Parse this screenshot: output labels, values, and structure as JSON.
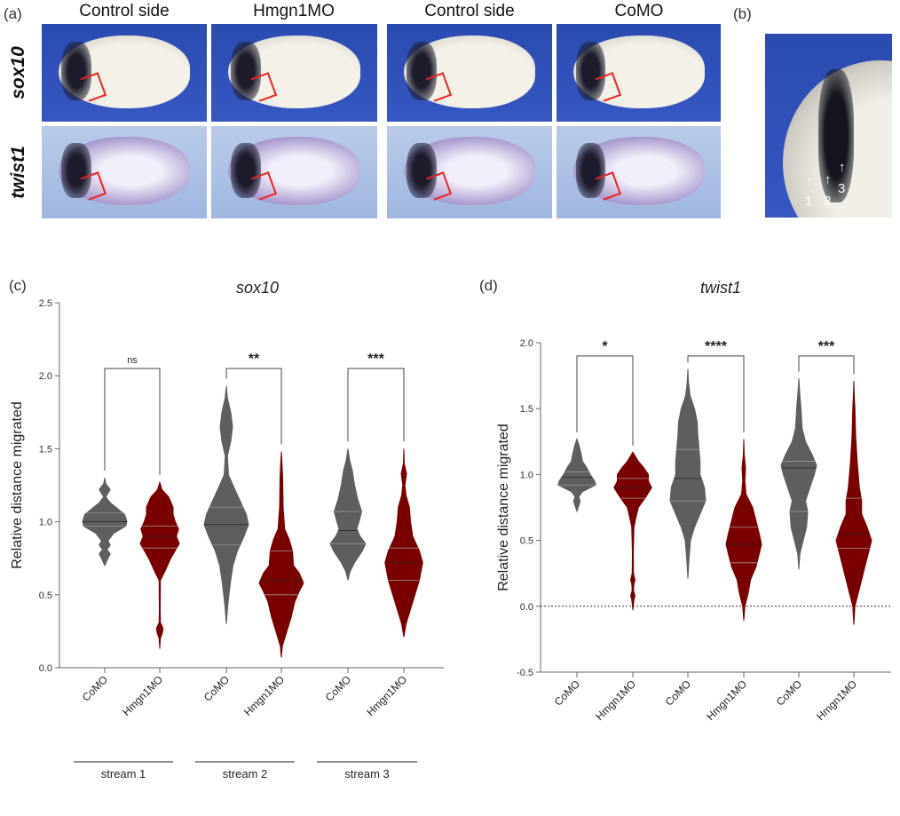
{
  "panel_a": {
    "label": "(a)",
    "columns": [
      "Control side",
      "Hmgn1MO",
      "Control side",
      "CoMO"
    ],
    "rows": [
      "sox10",
      "twist1"
    ]
  },
  "panel_b": {
    "label": "(b)",
    "arrows": [
      "1",
      "2",
      "3"
    ]
  },
  "colors": {
    "como": "#5e5e5e",
    "hmgn1mo": "#7a0000",
    "bracket_mark": "#e02020",
    "background_dark": "#3050bb",
    "background_light": "#a9bee4"
  },
  "chart_data": [
    {
      "panel_label": "(c)",
      "type": "violin",
      "title": "sox10",
      "ylabel": "Relative distance migrated",
      "ylim": [
        0,
        2.5
      ],
      "yticks": [
        "0.0",
        "0.5",
        "1.0",
        "1.5",
        "2.0",
        "2.5"
      ],
      "categories": [
        "CoMO",
        "Hmgn1MO",
        "CoMO",
        "Hmgn1MO",
        "CoMO",
        "Hmgn1MO"
      ],
      "groups": [
        "stream 1",
        "stream 2",
        "stream 3"
      ],
      "zero_line": false,
      "significance": [
        {
          "pair": [
            0,
            1
          ],
          "label": "ns",
          "y": 2.05
        },
        {
          "pair": [
            2,
            3
          ],
          "label": "**",
          "y": 2.05
        },
        {
          "pair": [
            4,
            5
          ],
          "label": "***",
          "y": 2.05
        }
      ],
      "violins": [
        {
          "group": "CoMO",
          "median": 1.0,
          "q1": 0.97,
          "q3": 1.06,
          "density": [
            [
              0.7,
              0
            ],
            [
              0.75,
              0.15
            ],
            [
              0.78,
              0.25
            ],
            [
              0.81,
              0.1
            ],
            [
              0.84,
              0.25
            ],
            [
              0.87,
              0.15
            ],
            [
              0.92,
              0.4
            ],
            [
              0.97,
              0.95
            ],
            [
              1.0,
              1.0
            ],
            [
              1.05,
              0.9
            ],
            [
              1.1,
              0.5
            ],
            [
              1.13,
              0.25
            ],
            [
              1.17,
              0.05
            ],
            [
              1.22,
              0.25
            ],
            [
              1.26,
              0.05
            ],
            [
              1.3,
              0
            ]
          ]
        },
        {
          "group": "Hmgn1MO",
          "median": 0.9,
          "q1": 0.82,
          "q3": 0.97,
          "density": [
            [
              0.13,
              0
            ],
            [
              0.2,
              0.03
            ],
            [
              0.24,
              0.12
            ],
            [
              0.27,
              0.15
            ],
            [
              0.31,
              0.03
            ],
            [
              0.4,
              0.02
            ],
            [
              0.6,
              0.03
            ],
            [
              0.65,
              0.2
            ],
            [
              0.75,
              0.5
            ],
            [
              0.85,
              0.88
            ],
            [
              0.9,
              0.75
            ],
            [
              0.95,
              0.85
            ],
            [
              1.0,
              0.7
            ],
            [
              1.05,
              0.6
            ],
            [
              1.1,
              0.6
            ],
            [
              1.17,
              0.4
            ],
            [
              1.22,
              0.1
            ],
            [
              1.27,
              0
            ]
          ]
        },
        {
          "group": "CoMO",
          "median": 0.98,
          "q1": 0.84,
          "q3": 1.1,
          "density": [
            [
              0.3,
              0
            ],
            [
              0.4,
              0.05
            ],
            [
              0.5,
              0.12
            ],
            [
              0.6,
              0.2
            ],
            [
              0.7,
              0.3
            ],
            [
              0.8,
              0.5
            ],
            [
              0.9,
              0.8
            ],
            [
              0.98,
              1.0
            ],
            [
              1.05,
              0.9
            ],
            [
              1.15,
              0.6
            ],
            [
              1.25,
              0.3
            ],
            [
              1.32,
              0.1
            ],
            [
              1.45,
              0.05
            ],
            [
              1.55,
              0.2
            ],
            [
              1.65,
              0.28
            ],
            [
              1.75,
              0.2
            ],
            [
              1.85,
              0.05
            ],
            [
              1.93,
              0
            ]
          ]
        },
        {
          "group": "Hmgn1MO",
          "median": 0.6,
          "q1": 0.5,
          "q3": 0.8,
          "density": [
            [
              0.07,
              0
            ],
            [
              0.15,
              0.05
            ],
            [
              0.25,
              0.25
            ],
            [
              0.35,
              0.45
            ],
            [
              0.45,
              0.6
            ],
            [
              0.52,
              0.8
            ],
            [
              0.58,
              1.0
            ],
            [
              0.65,
              0.8
            ],
            [
              0.7,
              0.55
            ],
            [
              0.8,
              0.5
            ],
            [
              0.88,
              0.35
            ],
            [
              0.95,
              0.15
            ],
            [
              1.1,
              0.08
            ],
            [
              1.3,
              0.06
            ],
            [
              1.4,
              0.03
            ],
            [
              1.48,
              0
            ]
          ]
        },
        {
          "group": "CoMO",
          "median": 0.94,
          "q1": 0.85,
          "q3": 1.07,
          "density": [
            [
              0.6,
              0
            ],
            [
              0.66,
              0.1
            ],
            [
              0.72,
              0.3
            ],
            [
              0.8,
              0.65
            ],
            [
              0.85,
              0.8
            ],
            [
              0.9,
              0.55
            ],
            [
              0.95,
              0.4
            ],
            [
              1.0,
              0.5
            ],
            [
              1.07,
              0.62
            ],
            [
              1.15,
              0.45
            ],
            [
              1.25,
              0.3
            ],
            [
              1.35,
              0.2
            ],
            [
              1.42,
              0.08
            ],
            [
              1.5,
              0
            ]
          ]
        },
        {
          "group": "Hmgn1MO",
          "median": 0.72,
          "q1": 0.6,
          "q3": 0.82,
          "density": [
            [
              0.21,
              0
            ],
            [
              0.3,
              0.1
            ],
            [
              0.4,
              0.3
            ],
            [
              0.5,
              0.5
            ],
            [
              0.6,
              0.7
            ],
            [
              0.72,
              0.85
            ],
            [
              0.8,
              0.7
            ],
            [
              0.9,
              0.4
            ],
            [
              1.0,
              0.3
            ],
            [
              1.1,
              0.25
            ],
            [
              1.18,
              0.1
            ],
            [
              1.25,
              0.05
            ],
            [
              1.33,
              0.12
            ],
            [
              1.4,
              0.02
            ],
            [
              1.5,
              0
            ]
          ]
        }
      ]
    },
    {
      "panel_label": "(d)",
      "type": "violin",
      "title": "twist1",
      "ylabel": "Relative distance migrated",
      "ylim": [
        -0.5,
        2.0
      ],
      "yticks": [
        "-0.5",
        "0.0",
        "0.5",
        "1.0",
        "1.5",
        "2.0"
      ],
      "categories": [
        "CoMO",
        "Hmgn1MO",
        "CoMO",
        "Hmgn1MO",
        "CoMO",
        "Hmgn1MO"
      ],
      "groups": [],
      "zero_line": true,
      "significance": [
        {
          "pair": [
            0,
            1
          ],
          "label": "*",
          "y": 1.9
        },
        {
          "pair": [
            2,
            3
          ],
          "label": "****",
          "y": 1.9
        },
        {
          "pair": [
            4,
            5
          ],
          "label": "***",
          "y": 1.9
        }
      ],
      "violins": [
        {
          "group": "CoMO",
          "median": 0.98,
          "q1": 0.92,
          "q3": 1.02,
          "density": [
            [
              0.72,
              0
            ],
            [
              0.77,
              0.1
            ],
            [
              0.8,
              0.15
            ],
            [
              0.83,
              0.08
            ],
            [
              0.87,
              0.25
            ],
            [
              0.92,
              0.85
            ],
            [
              0.95,
              0.8
            ],
            [
              1.0,
              0.6
            ],
            [
              1.05,
              0.45
            ],
            [
              1.1,
              0.25
            ],
            [
              1.15,
              0.2
            ],
            [
              1.22,
              0.1
            ],
            [
              1.27,
              0
            ]
          ]
        },
        {
          "group": "Hmgn1MO",
          "median": 0.9,
          "q1": 0.82,
          "q3": 0.97,
          "density": [
            [
              -0.03,
              0
            ],
            [
              0.05,
              0.05
            ],
            [
              0.08,
              0.1
            ],
            [
              0.12,
              0.03
            ],
            [
              0.17,
              0.05
            ],
            [
              0.2,
              0.1
            ],
            [
              0.25,
              0.03
            ],
            [
              0.4,
              0.02
            ],
            [
              0.6,
              0.05
            ],
            [
              0.68,
              0.15
            ],
            [
              0.75,
              0.25
            ],
            [
              0.82,
              0.55
            ],
            [
              0.9,
              0.85
            ],
            [
              0.95,
              0.7
            ],
            [
              1.0,
              0.7
            ],
            [
              1.05,
              0.5
            ],
            [
              1.1,
              0.25
            ],
            [
              1.17,
              0
            ]
          ]
        },
        {
          "group": "CoMO",
          "median": 0.97,
          "q1": 0.8,
          "q3": 1.19,
          "density": [
            [
              0.21,
              0
            ],
            [
              0.35,
              0.05
            ],
            [
              0.5,
              0.12
            ],
            [
              0.6,
              0.3
            ],
            [
              0.7,
              0.55
            ],
            [
              0.8,
              0.8
            ],
            [
              0.9,
              0.75
            ],
            [
              1.0,
              0.55
            ],
            [
              1.1,
              0.55
            ],
            [
              1.2,
              0.5
            ],
            [
              1.3,
              0.45
            ],
            [
              1.4,
              0.42
            ],
            [
              1.5,
              0.3
            ],
            [
              1.6,
              0.1
            ],
            [
              1.7,
              0.03
            ],
            [
              1.8,
              0
            ]
          ]
        },
        {
          "group": "Hmgn1MO",
          "median": 0.47,
          "q1": 0.33,
          "q3": 0.6,
          "density": [
            [
              -0.11,
              0
            ],
            [
              0,
              0.05
            ],
            [
              0.1,
              0.2
            ],
            [
              0.2,
              0.3
            ],
            [
              0.3,
              0.55
            ],
            [
              0.4,
              0.7
            ],
            [
              0.47,
              0.8
            ],
            [
              0.55,
              0.7
            ],
            [
              0.65,
              0.55
            ],
            [
              0.75,
              0.4
            ],
            [
              0.85,
              0.1
            ],
            [
              0.95,
              0.05
            ],
            [
              1.05,
              0.08
            ],
            [
              1.15,
              0.02
            ],
            [
              1.27,
              0
            ]
          ]
        },
        {
          "group": "CoMO",
          "median": 1.05,
          "q1": 0.72,
          "q3": 1.1,
          "density": [
            [
              0.28,
              0
            ],
            [
              0.4,
              0.05
            ],
            [
              0.5,
              0.2
            ],
            [
              0.6,
              0.35
            ],
            [
              0.72,
              0.4
            ],
            [
              0.8,
              0.3
            ],
            [
              0.9,
              0.5
            ],
            [
              1.0,
              0.7
            ],
            [
              1.07,
              0.8
            ],
            [
              1.15,
              0.6
            ],
            [
              1.25,
              0.3
            ],
            [
              1.35,
              0.15
            ],
            [
              1.5,
              0.1
            ],
            [
              1.6,
              0.05
            ],
            [
              1.73,
              0
            ]
          ]
        },
        {
          "group": "Hmgn1MO",
          "median": 0.55,
          "q1": 0.44,
          "q3": 0.82,
          "density": [
            [
              -0.14,
              0
            ],
            [
              0,
              0.05
            ],
            [
              0.1,
              0.2
            ],
            [
              0.2,
              0.35
            ],
            [
              0.3,
              0.5
            ],
            [
              0.4,
              0.65
            ],
            [
              0.5,
              0.8
            ],
            [
              0.6,
              0.6
            ],
            [
              0.7,
              0.35
            ],
            [
              0.8,
              0.35
            ],
            [
              0.9,
              0.25
            ],
            [
              1.1,
              0.15
            ],
            [
              1.3,
              0.08
            ],
            [
              1.5,
              0.05
            ],
            [
              1.6,
              0.02
            ],
            [
              1.71,
              0
            ]
          ]
        }
      ]
    }
  ]
}
